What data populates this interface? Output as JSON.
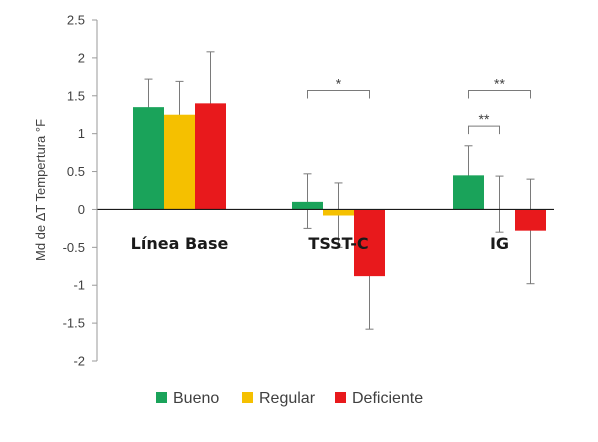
{
  "chart_data": {
    "type": "bar",
    "ylabel": "Md de ΔT Tempertura °F",
    "ylim": [
      -2,
      2.5
    ],
    "yticks": [
      "-2",
      "-1.5",
      "-1",
      "-0.5",
      "0",
      "0.5",
      "1",
      "1.5",
      "2",
      "2.5"
    ],
    "ytick_values": [
      -2,
      -1.5,
      -1,
      -0.5,
      0,
      0.5,
      1,
      1.5,
      2,
      2.5
    ],
    "categories": [
      "Línea Base",
      "TSST-C",
      "IG"
    ],
    "series": [
      {
        "name": "Bueno",
        "color": "#1aa35a",
        "values": [
          1.35,
          0.1,
          0.45
        ],
        "err_low": [
          0.98,
          -0.25,
          0.05
        ],
        "err_high": [
          1.72,
          0.47,
          0.84
        ]
      },
      {
        "name": "Regular",
        "color": "#f5c000",
        "values": [
          1.25,
          -0.08,
          0.0
        ],
        "err_low": [
          0.8,
          -0.5,
          -0.3
        ],
        "err_high": [
          1.69,
          0.35,
          0.44
        ]
      },
      {
        "name": "Deficiente",
        "color": "#e8191c",
        "values": [
          1.4,
          -0.88,
          -0.28
        ],
        "err_low": [
          0.7,
          -1.58,
          -0.98
        ],
        "err_high": [
          2.08,
          -0.18,
          0.4
        ]
      }
    ],
    "annotations": [
      {
        "text": "*",
        "category": 1,
        "from_series": 0,
        "to_series": 2,
        "y": 1.57
      },
      {
        "text": "**",
        "category": 2,
        "from_series": 0,
        "to_series": 1,
        "y": 1.1
      },
      {
        "text": "**",
        "category": 2,
        "from_series": 0,
        "to_series": 2,
        "y": 1.57
      }
    ],
    "legend": "bottom",
    "grid": false
  }
}
